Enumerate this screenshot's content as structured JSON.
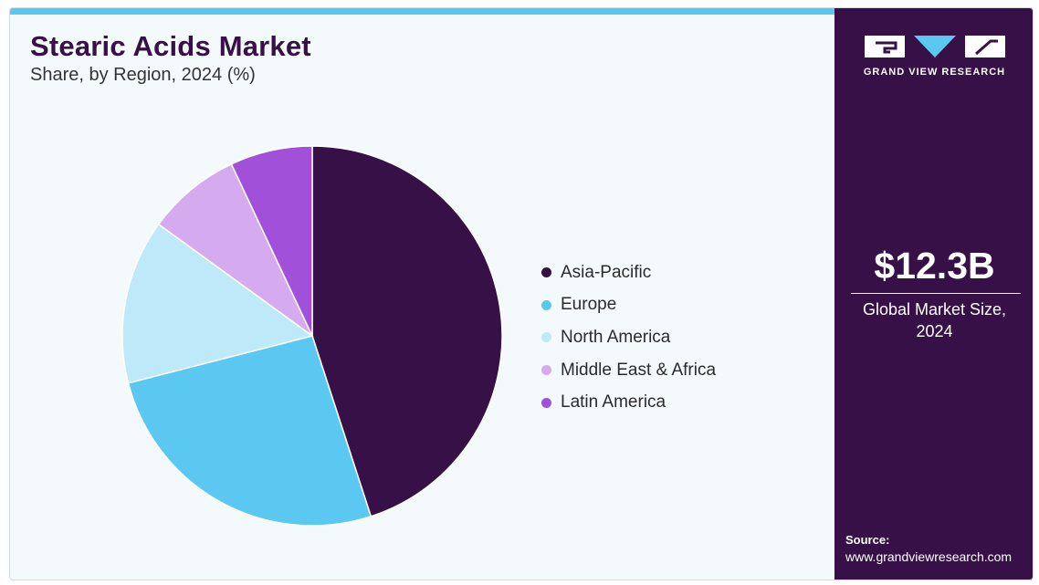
{
  "header": {
    "title": "Stearic Acids Market",
    "subtitle": "Share, by Region, 2024 (%)"
  },
  "chart_data": {
    "type": "pie",
    "categories": [
      "Asia-Pacific",
      "Europe",
      "North America",
      "Middle East & Africa",
      "Latin America"
    ],
    "values": [
      45,
      26,
      14,
      8,
      7
    ],
    "colors": [
      "#361046",
      "#5bc8f2",
      "#bde9f8",
      "#d6aaee",
      "#a151d9"
    ],
    "start_angle_deg": 0,
    "direction": "clockwise",
    "legend_position": "right"
  },
  "sidebar": {
    "brand": "GRAND VIEW RESEARCH",
    "logo_icon": "gvr-logo-icon",
    "market_size": "$12.3B",
    "market_label_line1": "Global Market Size,",
    "market_label_line2": "2024",
    "source_label": "Source:",
    "source_url": "www.grandviewresearch.com"
  }
}
